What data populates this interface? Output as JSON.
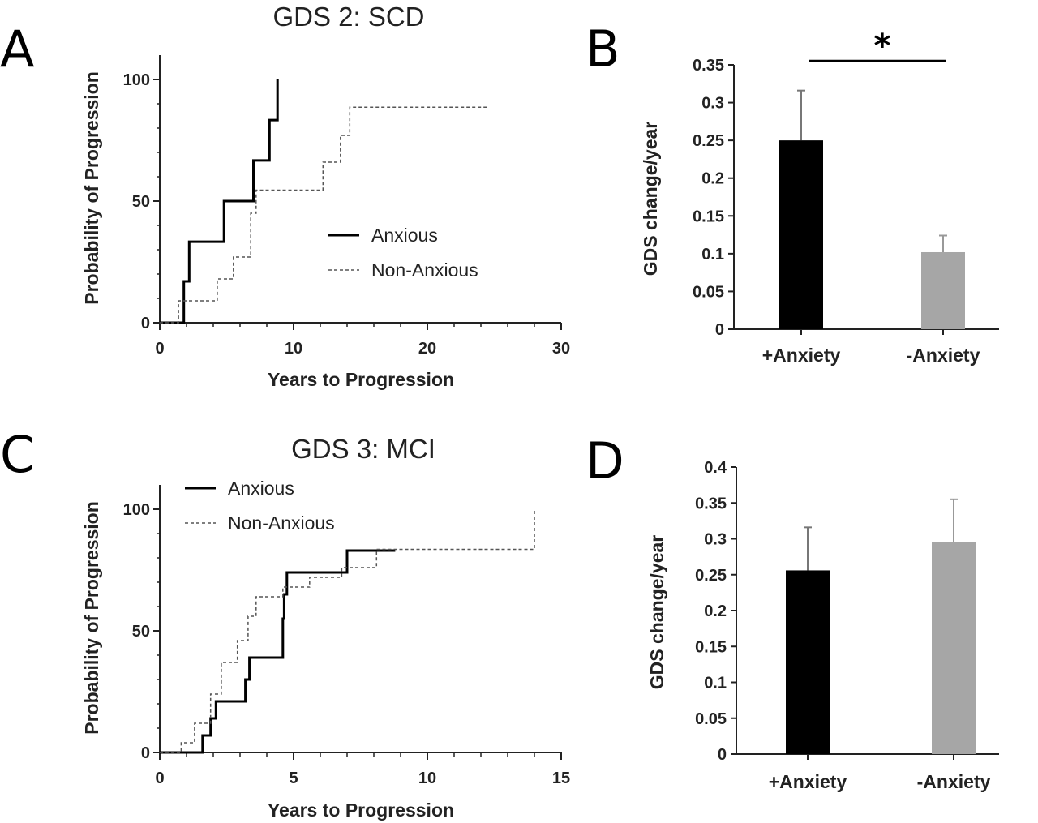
{
  "chart_data": [
    {
      "panel": "A",
      "type": "line",
      "title": "GDS 2: SCD",
      "xlabel": "Years to Progression",
      "ylabel": "Probability of Progression",
      "xlim": [
        0,
        30
      ],
      "ylim": [
        0,
        110
      ],
      "xticks": [
        "0",
        "10",
        "20",
        "30"
      ],
      "yticks": [
        "0",
        "50",
        "100"
      ],
      "legend_position": "center-right",
      "series": [
        {
          "name": "Anxious",
          "style": "solid",
          "points": [
            [
              0,
              0
            ],
            [
              1.8,
              0
            ],
            [
              1.8,
              17
            ],
            [
              2.2,
              17
            ],
            [
              2.2,
              33.3
            ],
            [
              4.8,
              33.3
            ],
            [
              4.8,
              50
            ],
            [
              7,
              50
            ],
            [
              7,
              66.7
            ],
            [
              8.2,
              66.7
            ],
            [
              8.2,
              83.3
            ],
            [
              8.8,
              83.3
            ],
            [
              8.8,
              100
            ]
          ]
        },
        {
          "name": "Non-Anxious",
          "style": "dashed",
          "points": [
            [
              0,
              0
            ],
            [
              1.4,
              0
            ],
            [
              1.4,
              9
            ],
            [
              4.3,
              9
            ],
            [
              4.3,
              18
            ],
            [
              5.5,
              18
            ],
            [
              5.5,
              27
            ],
            [
              6.8,
              27
            ],
            [
              6.8,
              45
            ],
            [
              7.2,
              45
            ],
            [
              7.2,
              54.5
            ],
            [
              12.2,
              54.5
            ],
            [
              12.2,
              66
            ],
            [
              13.5,
              66
            ],
            [
              13.5,
              77
            ],
            [
              14.2,
              77
            ],
            [
              14.2,
              88.6
            ],
            [
              24.5,
              88.6
            ]
          ]
        }
      ]
    },
    {
      "panel": "B",
      "type": "bar",
      "ylabel": "GDS change/year",
      "ylim": [
        0,
        0.35
      ],
      "yticks": [
        "0",
        "0.05",
        "0.1",
        "0.15",
        "0.2",
        "0.25",
        "0.3",
        "0.35"
      ],
      "categories": [
        "+Anxiety",
        "-Anxiety"
      ],
      "values": [
        0.25,
        0.102
      ],
      "errors": [
        0.066,
        0.022
      ],
      "colors": [
        "#000000",
        "#a6a6a6"
      ],
      "annotation": "*"
    },
    {
      "panel": "C",
      "type": "line",
      "title": "GDS 3: MCI",
      "xlabel": "Years to Progression",
      "ylabel": "Probability of Progression",
      "xlim": [
        0,
        15
      ],
      "ylim": [
        0,
        110
      ],
      "xticks": [
        "0",
        "5",
        "10",
        "15"
      ],
      "yticks": [
        "0",
        "50",
        "100"
      ],
      "legend_position": "top-left",
      "series": [
        {
          "name": "Anxious",
          "style": "solid",
          "points": [
            [
              0,
              0
            ],
            [
              1.6,
              0
            ],
            [
              1.6,
              7
            ],
            [
              1.9,
              7
            ],
            [
              1.9,
              14
            ],
            [
              2.1,
              14
            ],
            [
              2.1,
              21
            ],
            [
              3.2,
              21
            ],
            [
              3.2,
              30
            ],
            [
              3.35,
              30
            ],
            [
              3.35,
              39
            ],
            [
              4.6,
              39
            ],
            [
              4.6,
              55
            ],
            [
              4.65,
              55
            ],
            [
              4.65,
              65
            ],
            [
              4.75,
              65
            ],
            [
              4.75,
              74
            ],
            [
              7,
              74
            ],
            [
              7,
              83
            ],
            [
              8.8,
              83
            ]
          ]
        },
        {
          "name": "Non-Anxious",
          "style": "dashed",
          "points": [
            [
              0,
              0
            ],
            [
              0.8,
              0
            ],
            [
              0.8,
              4
            ],
            [
              1.3,
              4
            ],
            [
              1.3,
              12
            ],
            [
              1.9,
              12
            ],
            [
              1.9,
              24
            ],
            [
              2.3,
              24
            ],
            [
              2.3,
              37
            ],
            [
              2.9,
              37
            ],
            [
              2.9,
              46
            ],
            [
              3.3,
              46
            ],
            [
              3.3,
              56
            ],
            [
              3.6,
              56
            ],
            [
              3.6,
              64
            ],
            [
              4.6,
              64
            ],
            [
              4.6,
              68
            ],
            [
              5.6,
              68
            ],
            [
              5.6,
              72
            ],
            [
              6.8,
              72
            ],
            [
              6.8,
              76
            ],
            [
              8.1,
              76
            ],
            [
              8.1,
              83.5
            ],
            [
              14,
              83.5
            ],
            [
              14,
              100
            ]
          ]
        }
      ]
    },
    {
      "panel": "D",
      "type": "bar",
      "ylabel": "GDS change/year",
      "ylim": [
        0,
        0.4
      ],
      "yticks": [
        "0",
        "0.05",
        "0.1",
        "0.15",
        "0.2",
        "0.25",
        "0.3",
        "0.35",
        "0.4"
      ],
      "categories": [
        "+Anxiety",
        "-Anxiety"
      ],
      "values": [
        0.256,
        0.295
      ],
      "errors": [
        0.06,
        0.06
      ],
      "colors": [
        "#000000",
        "#a6a6a6"
      ]
    }
  ]
}
